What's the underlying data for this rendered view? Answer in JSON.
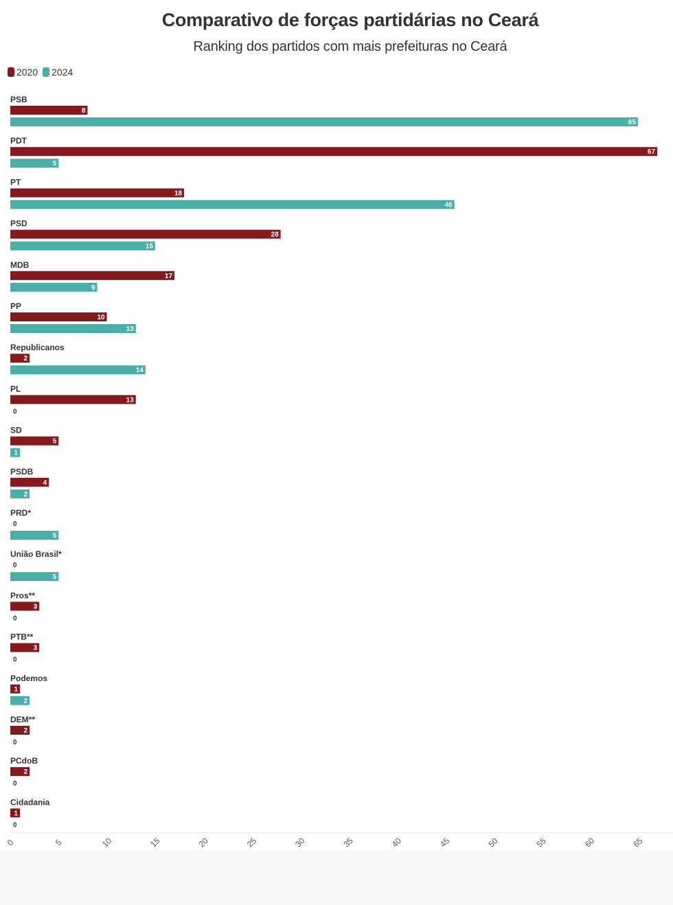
{
  "chart_data": {
    "type": "bar",
    "orientation": "horizontal",
    "title": "Comparativo de forças partidárias no Ceará",
    "subtitle": "Ranking dos partidos com mais prefeituras no Ceará",
    "categories": [
      "PSB",
      "PDT",
      "PT",
      "PSD",
      "MDB",
      "PP",
      "Republicanos",
      "PL",
      "SD",
      "PSDB",
      "PRD*",
      "União Brasil*",
      "Pros**",
      "PTB**",
      "Podemos",
      "DEM**",
      "PCdoB",
      "Cidadania"
    ],
    "series": [
      {
        "name": "2020",
        "color": "#841a1e",
        "values": [
          8,
          67,
          18,
          28,
          17,
          10,
          2,
          13,
          5,
          4,
          0,
          0,
          3,
          3,
          1,
          2,
          2,
          1
        ]
      },
      {
        "name": "2024",
        "color": "#4aada8",
        "values": [
          65,
          5,
          46,
          15,
          9,
          13,
          14,
          0,
          1,
          2,
          5,
          5,
          0,
          0,
          2,
          0,
          0,
          0
        ]
      }
    ],
    "x_ticks": [
      0,
      5,
      10,
      15,
      20,
      25,
      30,
      35,
      40,
      45,
      50,
      55,
      60,
      65
    ],
    "xlim": [
      0,
      68
    ],
    "legend_position": "top-left",
    "grid": false
  }
}
